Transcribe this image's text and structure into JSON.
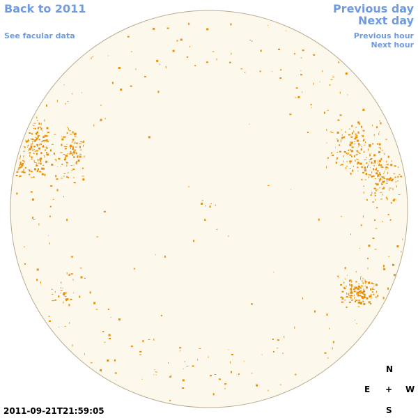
{
  "header": {
    "back_link": "Back to 2011",
    "facular_link": "See facular data"
  },
  "navigation": {
    "previous_day": "Previous day",
    "next_day": "Next day",
    "previous_hour": "Previous hour",
    "next_hour": "Next hour"
  },
  "timestamp": "2011-09-21T21:59:05",
  "compass": {
    "north": "N",
    "east": "E",
    "center": "+",
    "west": "W",
    "south": "S"
  }
}
